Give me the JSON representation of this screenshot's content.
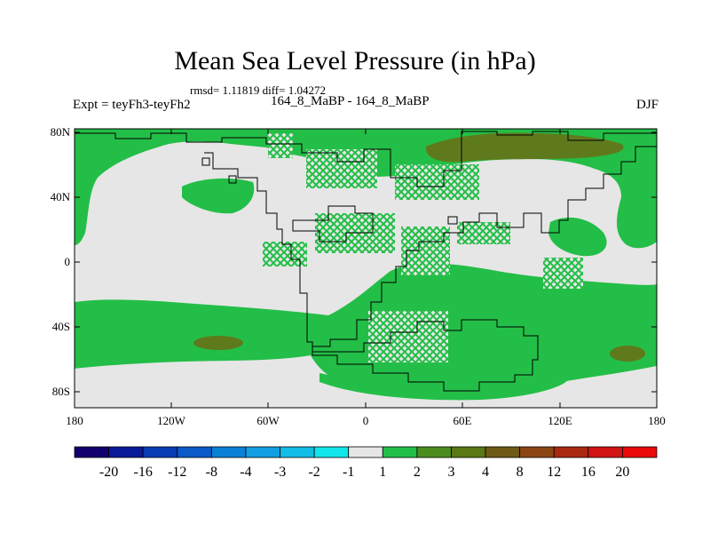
{
  "title": "Mean Sea Level Pressure (in hPa)",
  "stats": "rmsd= 1.11819 diff= 1.04272",
  "left_label": "Expt = teyFh3-teyFh2",
  "center_label": "164_8_MaBP - 164_8_MaBP",
  "right_label": "DJF",
  "lat_ticks": [
    "80N",
    "40N",
    "0",
    "40S",
    "80S"
  ],
  "lon_ticks": [
    "180",
    "120W",
    "60W",
    "0",
    "60E",
    "120E",
    "180"
  ],
  "colorbar": {
    "labels": [
      "-20",
      "-16",
      "-12",
      "-8",
      "-4",
      "-3",
      "-2",
      "-1",
      "1",
      "2",
      "3",
      "4",
      "8",
      "12",
      "16",
      "20"
    ],
    "colors": [
      "#12006e",
      "#0a1a99",
      "#0a3cb4",
      "#0a5ac8",
      "#0a80d6",
      "#129ee0",
      "#12bde6",
      "#12e6ea",
      "#e6e6e6",
      "#23be47",
      "#4b8c1e",
      "#5a7814",
      "#6e5a14",
      "#8c4614",
      "#aa2810",
      "#d21414",
      "#ea0a0a"
    ]
  },
  "colors": {
    "land_bg": "#e6e6e6",
    "positive_fill": "#23be47",
    "strong_fill": "#5f7a1c"
  }
}
